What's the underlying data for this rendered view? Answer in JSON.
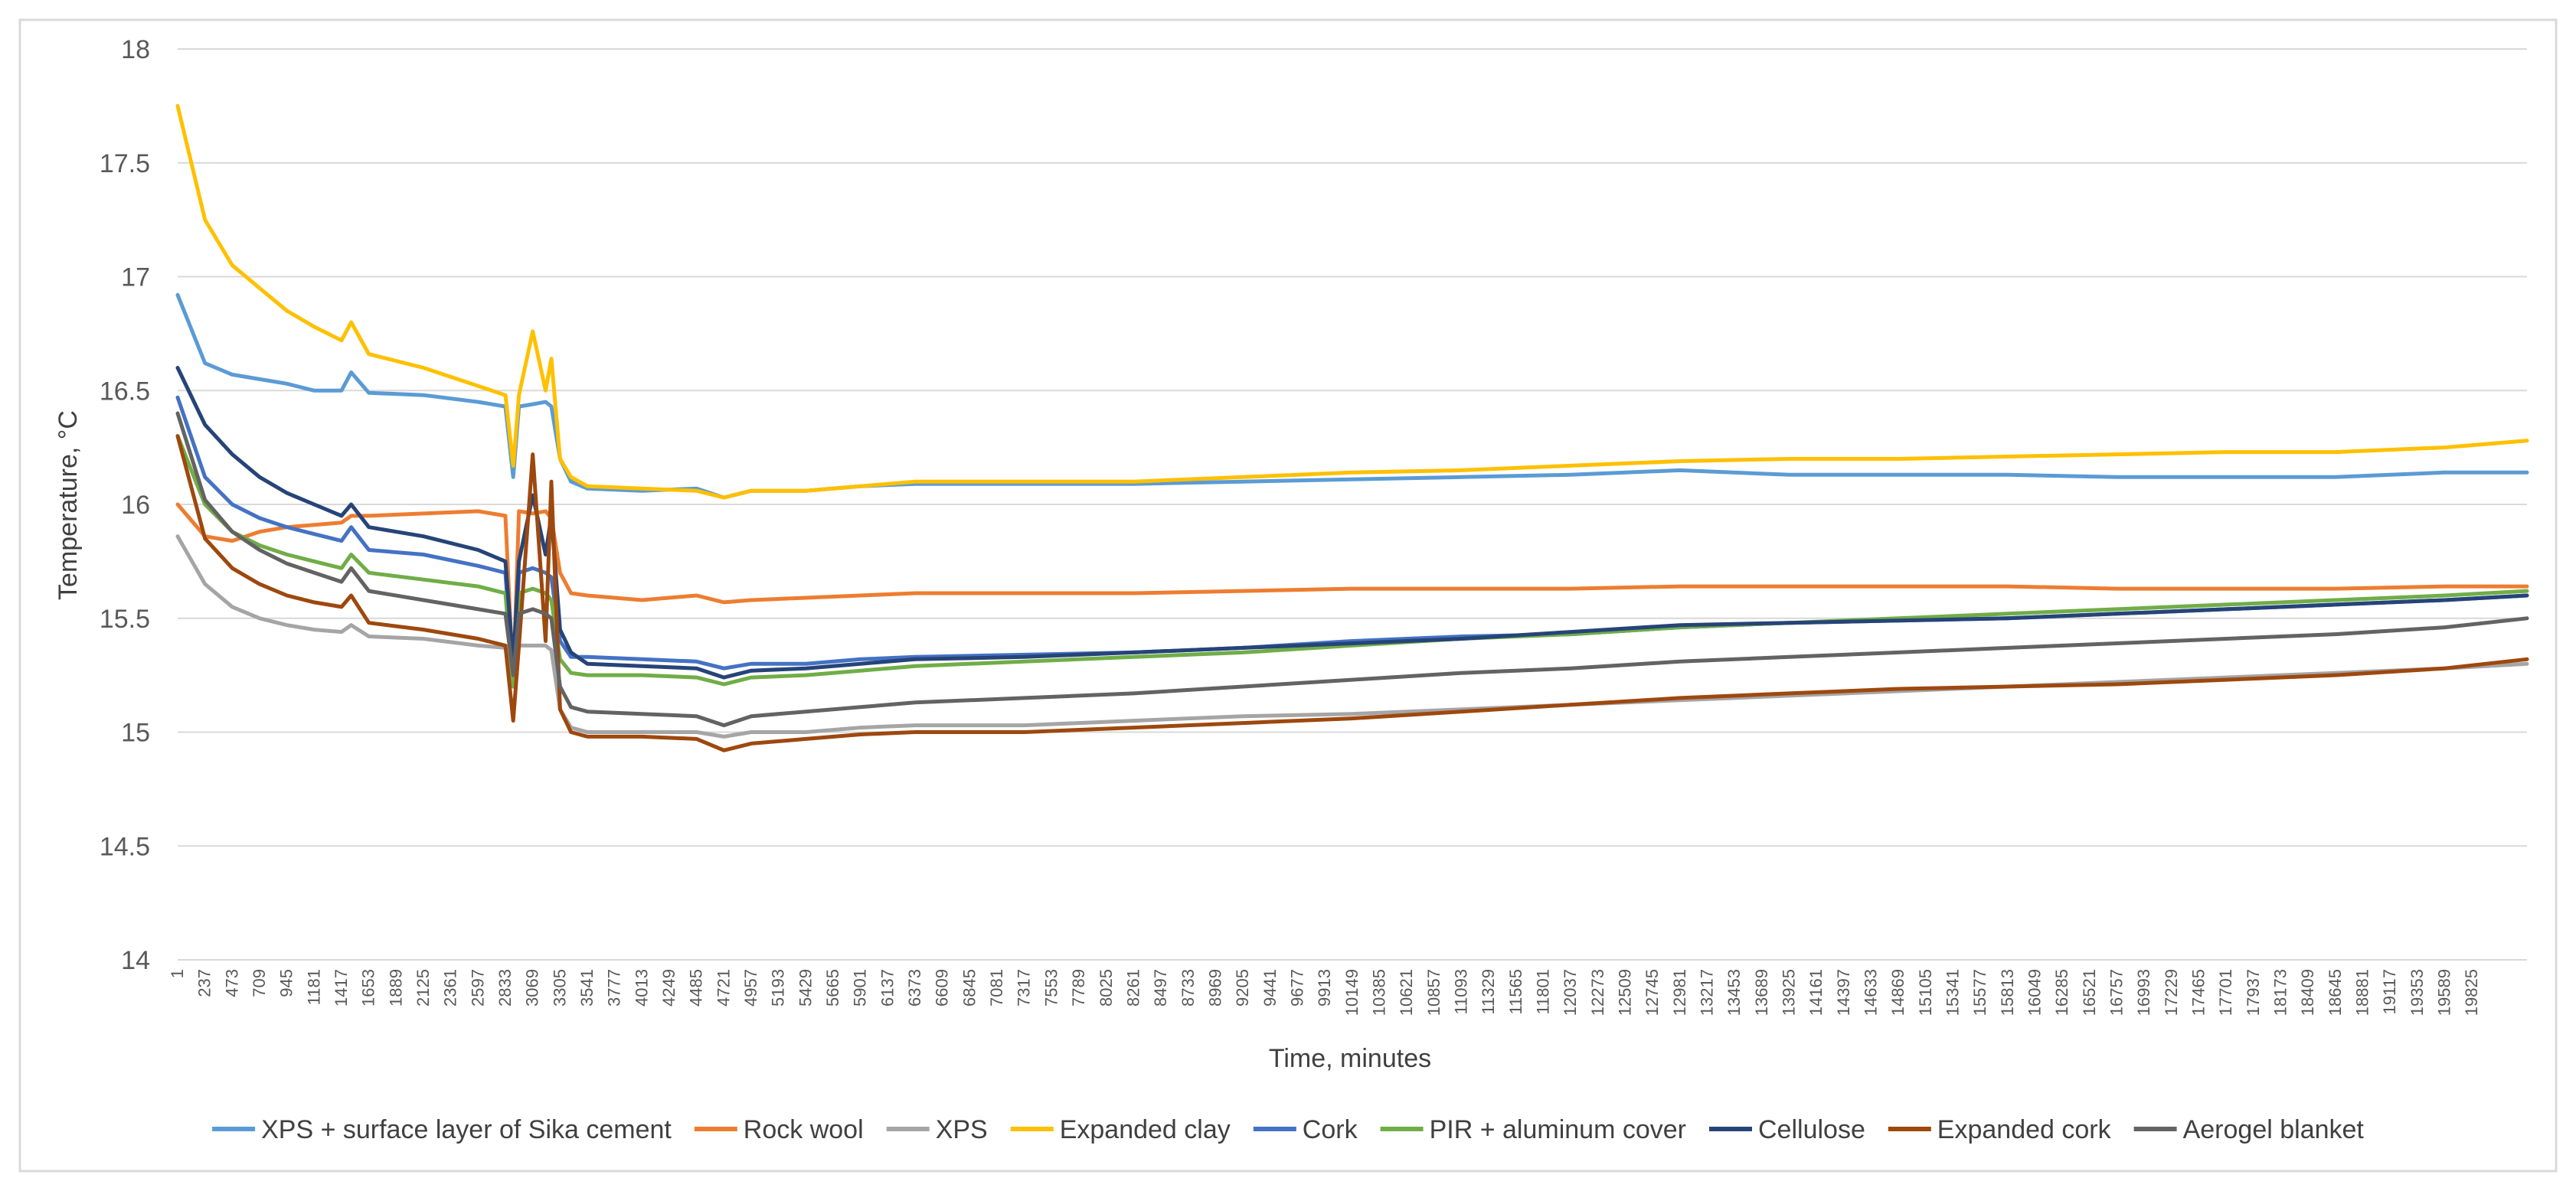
{
  "chart_data": {
    "type": "line",
    "title": "",
    "xlabel": "Time, minutes",
    "ylabel": "Temperature, °C",
    "ylim": [
      14,
      18
    ],
    "yticks": [
      "14",
      "14.5",
      "15",
      "15.5",
      "16",
      "16.5",
      "17",
      "17.5",
      "18"
    ],
    "xlim": [
      1,
      20300
    ],
    "xticks": [
      "1",
      "237",
      "473",
      "709",
      "945",
      "1181",
      "1417",
      "1653",
      "1889",
      "2125",
      "2361",
      "2597",
      "2833",
      "3069",
      "3305",
      "3541",
      "3777",
      "4013",
      "4249",
      "4485",
      "4721",
      "4957",
      "5193",
      "5429",
      "5665",
      "5901",
      "6137",
      "6373",
      "6609",
      "6845",
      "7081",
      "7317",
      "7553",
      "7789",
      "8025",
      "8261",
      "8497",
      "8733",
      "8969",
      "9205",
      "9441",
      "9677",
      "9913",
      "10149",
      "10385",
      "10621",
      "10857",
      "11093",
      "11329",
      "11565",
      "11801",
      "12037",
      "12273",
      "12509",
      "12745",
      "12981",
      "13217",
      "13453",
      "13689",
      "13925",
      "14161",
      "14397",
      "14633",
      "14869",
      "15105",
      "15341",
      "15577",
      "15813",
      "16049",
      "16285",
      "16521",
      "16757",
      "16993",
      "17229",
      "17465",
      "17701",
      "17937",
      "18173",
      "18409",
      "18645",
      "18881",
      "19117",
      "19353",
      "19589",
      "19825"
    ],
    "grid": true,
    "legend_position": "bottom",
    "x": [
      1,
      237,
      473,
      709,
      945,
      1181,
      1417,
      1500,
      1653,
      2125,
      2597,
      2833,
      2900,
      2950,
      3069,
      3180,
      3230,
      3305,
      3400,
      3541,
      4013,
      4485,
      4721,
      4957,
      5429,
      5901,
      6373,
      7317,
      8261,
      9205,
      10149,
      11093,
      12037,
      12981,
      13925,
      14869,
      15813,
      16757,
      17701,
      18645,
      19589,
      20300
    ],
    "series": [
      {
        "name": "XPS + surface layer of Sika cement",
        "color": "#5b9bd5",
        "values": [
          16.92,
          16.62,
          16.57,
          16.55,
          16.53,
          16.5,
          16.5,
          16.58,
          16.49,
          16.48,
          16.45,
          16.43,
          16.12,
          16.43,
          16.44,
          16.45,
          16.43,
          16.2,
          16.1,
          16.07,
          16.06,
          16.07,
          16.03,
          16.06,
          16.06,
          16.08,
          16.09,
          16.09,
          16.09,
          16.1,
          16.11,
          16.12,
          16.13,
          16.15,
          16.13,
          16.13,
          16.13,
          16.12,
          16.12,
          16.12,
          16.14,
          16.14
        ]
      },
      {
        "name": "Rock wool",
        "color": "#ed7d31",
        "values": [
          16.0,
          15.86,
          15.84,
          15.88,
          15.9,
          15.91,
          15.92,
          15.95,
          15.95,
          15.96,
          15.97,
          15.95,
          15.22,
          15.97,
          15.96,
          15.97,
          15.94,
          15.7,
          15.61,
          15.6,
          15.58,
          15.6,
          15.57,
          15.58,
          15.59,
          15.6,
          15.61,
          15.61,
          15.61,
          15.62,
          15.63,
          15.63,
          15.63,
          15.64,
          15.64,
          15.64,
          15.64,
          15.63,
          15.63,
          15.63,
          15.64,
          15.64
        ]
      },
      {
        "name": "XPS",
        "color": "#a5a5a5",
        "values": [
          15.86,
          15.65,
          15.55,
          15.5,
          15.47,
          15.45,
          15.44,
          15.47,
          15.42,
          15.41,
          15.38,
          15.37,
          15.2,
          15.38,
          15.38,
          15.38,
          15.36,
          15.1,
          15.02,
          15.0,
          15.0,
          15.0,
          14.98,
          15.0,
          15.0,
          15.02,
          15.03,
          15.03,
          15.05,
          15.07,
          15.08,
          15.1,
          15.12,
          15.14,
          15.16,
          15.18,
          15.2,
          15.22,
          15.24,
          15.26,
          15.28,
          15.3
        ]
      },
      {
        "name": "Expanded clay",
        "color": "#ffc000",
        "values": [
          17.75,
          17.25,
          17.05,
          16.95,
          16.85,
          16.78,
          16.72,
          16.8,
          16.66,
          16.6,
          16.52,
          16.48,
          16.17,
          16.48,
          16.76,
          16.5,
          16.64,
          16.2,
          16.12,
          16.08,
          16.07,
          16.06,
          16.03,
          16.06,
          16.06,
          16.08,
          16.1,
          16.1,
          16.1,
          16.12,
          16.14,
          16.15,
          16.17,
          16.19,
          16.2,
          16.2,
          16.21,
          16.22,
          16.23,
          16.23,
          16.25,
          16.28
        ]
      },
      {
        "name": "Cork",
        "color": "#4472c4",
        "values": [
          16.47,
          16.12,
          16.0,
          15.94,
          15.9,
          15.87,
          15.84,
          15.9,
          15.8,
          15.78,
          15.73,
          15.7,
          15.2,
          15.7,
          15.72,
          15.7,
          15.68,
          15.4,
          15.33,
          15.33,
          15.32,
          15.31,
          15.28,
          15.3,
          15.3,
          15.32,
          15.33,
          15.34,
          15.35,
          15.37,
          15.4,
          15.42,
          15.43,
          15.46,
          15.48,
          15.49,
          15.5,
          15.52,
          15.54,
          15.56,
          15.58,
          15.6
        ]
      },
      {
        "name": "PIR + aluminum cover",
        "color": "#70ad47",
        "values": [
          16.3,
          16.0,
          15.88,
          15.82,
          15.78,
          15.75,
          15.72,
          15.78,
          15.7,
          15.67,
          15.64,
          15.61,
          15.2,
          15.61,
          15.63,
          15.61,
          15.58,
          15.32,
          15.26,
          15.25,
          15.25,
          15.24,
          15.21,
          15.24,
          15.25,
          15.27,
          15.29,
          15.31,
          15.33,
          15.35,
          15.38,
          15.41,
          15.43,
          15.46,
          15.48,
          15.5,
          15.52,
          15.54,
          15.56,
          15.58,
          15.6,
          15.62
        ]
      },
      {
        "name": "Cellulose",
        "color": "#264478",
        "values": [
          16.6,
          16.35,
          16.22,
          16.12,
          16.05,
          16.0,
          15.95,
          16.0,
          15.9,
          15.86,
          15.8,
          15.75,
          15.3,
          15.75,
          16.04,
          15.78,
          15.95,
          15.45,
          15.35,
          15.3,
          15.29,
          15.28,
          15.24,
          15.27,
          15.28,
          15.3,
          15.32,
          15.33,
          15.35,
          15.37,
          15.39,
          15.41,
          15.44,
          15.47,
          15.48,
          15.49,
          15.5,
          15.52,
          15.54,
          15.56,
          15.58,
          15.6
        ]
      },
      {
        "name": "Expanded cork",
        "color": "#9e480e",
        "values": [
          16.3,
          15.85,
          15.72,
          15.65,
          15.6,
          15.57,
          15.55,
          15.6,
          15.48,
          15.45,
          15.41,
          15.38,
          15.05,
          15.38,
          16.22,
          15.4,
          16.1,
          15.1,
          15.0,
          14.98,
          14.98,
          14.97,
          14.92,
          14.95,
          14.97,
          14.99,
          15.0,
          15.0,
          15.02,
          15.04,
          15.06,
          15.09,
          15.12,
          15.15,
          15.17,
          15.19,
          15.2,
          15.21,
          15.23,
          15.25,
          15.28,
          15.32
        ]
      },
      {
        "name": "Aerogel blanket",
        "color": "#636363",
        "values": [
          16.4,
          16.02,
          15.88,
          15.8,
          15.74,
          15.7,
          15.66,
          15.72,
          15.62,
          15.58,
          15.54,
          15.52,
          15.25,
          15.52,
          15.54,
          15.52,
          15.5,
          15.2,
          15.11,
          15.09,
          15.08,
          15.07,
          15.03,
          15.07,
          15.09,
          15.11,
          15.13,
          15.15,
          15.17,
          15.2,
          15.23,
          15.26,
          15.28,
          15.31,
          15.33,
          15.35,
          15.37,
          15.39,
          15.41,
          15.43,
          15.46,
          15.5
        ]
      }
    ]
  }
}
